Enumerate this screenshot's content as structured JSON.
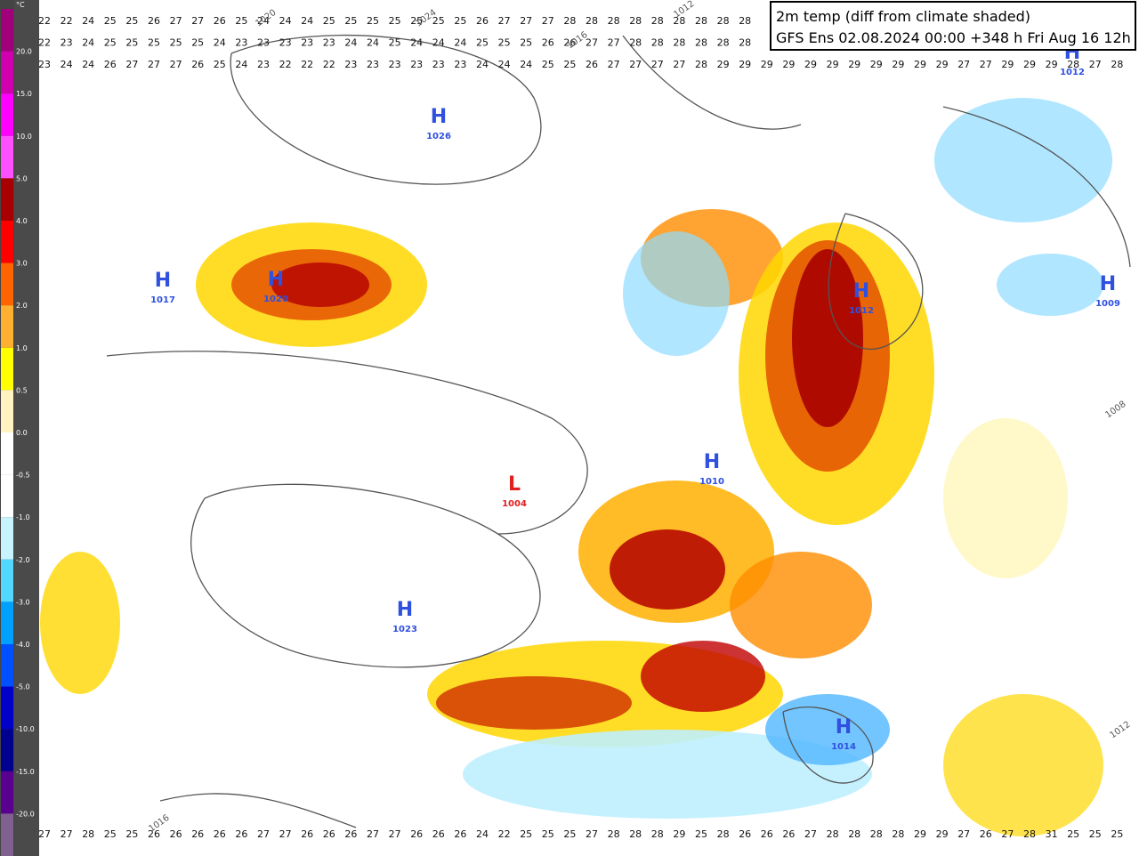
{
  "header": {
    "title": "2m temp (diff from climate shaded)",
    "subtitle": "GFS Ens 02.08.2024 00:00 +348 h Fri Aug 16 12h"
  },
  "legend": {
    "unit": "°C",
    "labels": [
      "20.0",
      "15.0",
      "10.0",
      "5.0",
      "4.0",
      "3.0",
      "2.0",
      "1.0",
      "0.5",
      "0.0",
      "-0.5",
      "-1.0",
      "-2.0",
      "-3.0",
      "-4.0",
      "-5.0",
      "-10.0",
      "-15.0",
      "-20.0"
    ]
  },
  "map": {
    "pressure_centers": [
      {
        "symbol": "H",
        "value": "1026"
      },
      {
        "symbol": "H",
        "value": "1020"
      },
      {
        "symbol": "H",
        "value": "1017"
      },
      {
        "symbol": "H",
        "value": "1023"
      },
      {
        "symbol": "L",
        "value": "1004"
      },
      {
        "symbol": "H",
        "value": "1010"
      },
      {
        "symbol": "H",
        "value": "1012"
      },
      {
        "symbol": "H",
        "value": "1009"
      },
      {
        "symbol": "H",
        "value": "1014"
      },
      {
        "symbol": "H",
        "value": "1012"
      }
    ],
    "isobar_labels": [
      "1024",
      "1020",
      "1016",
      "1016",
      "1012",
      "1012",
      "1008"
    ],
    "grid": {
      "rows": [
        [
          22,
          22,
          24,
          25,
          25,
          26,
          27,
          27,
          26,
          25,
          24,
          24,
          24,
          25,
          25,
          25,
          25,
          25,
          25,
          25,
          26,
          27,
          27,
          27,
          28,
          28,
          28,
          28,
          28,
          28,
          28,
          28,
          28
        ],
        [
          22,
          23,
          24,
          25,
          25,
          25,
          25,
          25,
          24,
          23,
          23,
          23,
          23,
          23,
          24,
          24,
          25,
          24,
          24,
          24,
          25,
          25,
          25,
          26,
          26,
          27,
          27,
          28,
          28,
          28,
          28,
          28,
          28
        ],
        [
          23,
          24,
          24,
          26,
          27,
          27,
          27,
          26,
          25,
          24,
          23,
          22,
          22,
          22,
          23,
          23,
          23,
          23,
          23,
          23,
          24,
          24,
          24,
          25,
          25,
          26,
          27,
          27,
          27,
          27,
          28,
          29,
          29,
          29,
          29,
          29,
          29,
          29,
          29,
          29,
          29,
          29,
          27,
          27,
          29,
          29,
          29,
          28,
          27,
          28
        ]
      ],
      "last_row": [
        27,
        27,
        28,
        25,
        25,
        26,
        26,
        26,
        26,
        26,
        27,
        27,
        26,
        26,
        26,
        27,
        27,
        26,
        26,
        26,
        24,
        22,
        25,
        25,
        25,
        27,
        28,
        28,
        28,
        29,
        25,
        28,
        26,
        26,
        26,
        27,
        28,
        28,
        28,
        28,
        29,
        29,
        27,
        26,
        27,
        28,
        31,
        25,
        25,
        25
      ]
    }
  }
}
